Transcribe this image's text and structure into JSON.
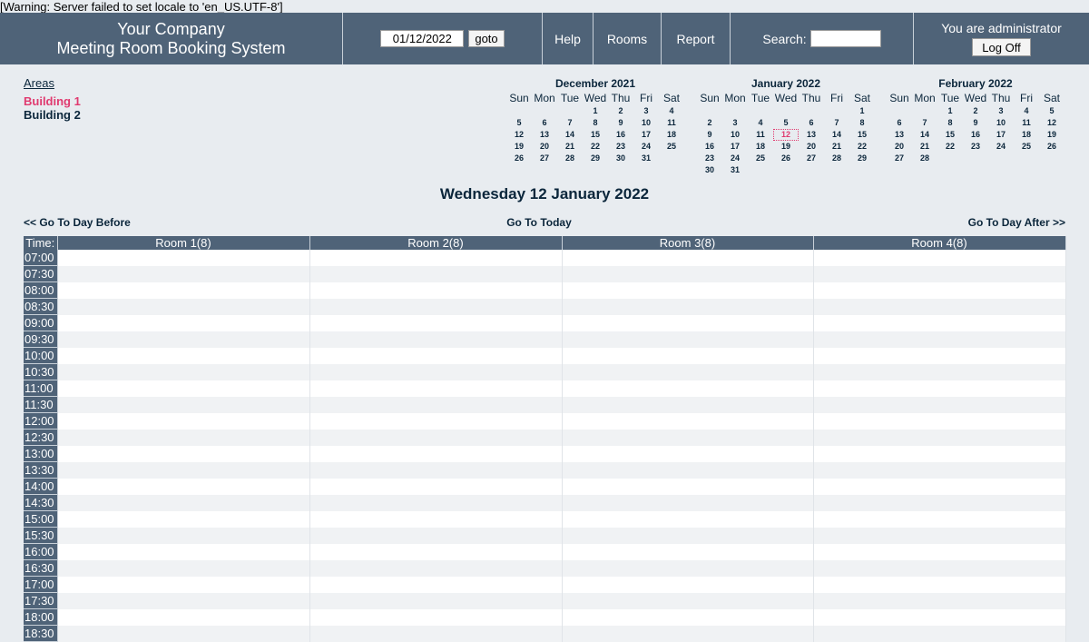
{
  "warning": "[Warning: Server failed to set locale to 'en_US.UTF-8']",
  "header": {
    "company_line1": "Your Company",
    "company_line2": "Meeting Room Booking System",
    "date_value": "01/12/2022",
    "goto_label": "goto",
    "help_label": "Help",
    "rooms_label": "Rooms",
    "report_label": "Report",
    "search_label": "Search:",
    "search_value": "",
    "user_text": "You are administrator",
    "logoff_label": "Log Off"
  },
  "areas": {
    "title": "Areas",
    "items": [
      "Building 1",
      "Building 2"
    ]
  },
  "calendars": [
    {
      "title": "December 2021",
      "dow": [
        "Sun",
        "Mon",
        "Tue",
        "Wed",
        "Thu",
        "Fri",
        "Sat"
      ],
      "offset": 3,
      "days": 31,
      "today": null
    },
    {
      "title": "January 2022",
      "dow": [
        "Sun",
        "Mon",
        "Tue",
        "Wed",
        "Thu",
        "Fri",
        "Sat"
      ],
      "offset": 6,
      "days": 31,
      "today": 12
    },
    {
      "title": "February 2022",
      "dow": [
        "Sun",
        "Mon",
        "Tue",
        "Wed",
        "Thu",
        "Fri",
        "Sat"
      ],
      "offset": 2,
      "days": 28,
      "today": null
    }
  ],
  "day_title": "Wednesday 12 January 2022",
  "nav": {
    "before": "<< Go To Day Before",
    "today": "Go To Today",
    "after": "Go To Day After >>"
  },
  "table": {
    "time_header": "Time:",
    "rooms": [
      "Room 1(8)",
      "Room 2(8)",
      "Room 3(8)",
      "Room 4(8)"
    ],
    "times": [
      "07:00",
      "07:30",
      "08:00",
      "08:30",
      "09:00",
      "09:30",
      "10:00",
      "10:30",
      "11:00",
      "11:30",
      "12:00",
      "12:30",
      "13:00",
      "13:30",
      "14:00",
      "14:30",
      "15:00",
      "15:30",
      "16:00",
      "16:30",
      "17:00",
      "17:30",
      "18:00",
      "18:30"
    ]
  },
  "colors": {
    "header_bg": "#4f6378",
    "page_bg": "#e8ecf0",
    "accent": "#e03a6f"
  }
}
